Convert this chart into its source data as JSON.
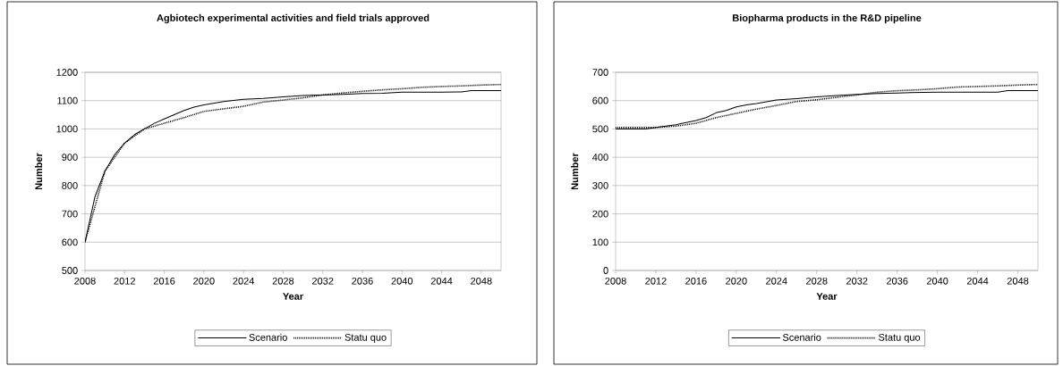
{
  "chart_data": [
    {
      "type": "line",
      "title": "Agbiotech experimental activities and field trials approved",
      "xlabel": "Year",
      "ylabel": "Number",
      "xlim": [
        2008,
        2050
      ],
      "xticks": [
        2008,
        2012,
        2016,
        2020,
        2024,
        2028,
        2032,
        2036,
        2040,
        2044,
        2048
      ],
      "ylim": [
        500,
        1200
      ],
      "yticks": [
        500,
        600,
        700,
        800,
        900,
        1000,
        1100,
        1200
      ],
      "grid": "y",
      "legend": "bottom",
      "marker": "none",
      "series": [
        {
          "name": "Scenario",
          "color": "#000000",
          "line_style": "solid",
          "x": [
            2008,
            2009,
            2010,
            2011,
            2012,
            2013,
            2014,
            2015,
            2016,
            2017,
            2018,
            2019,
            2020,
            2022,
            2024,
            2026,
            2028,
            2030,
            2032,
            2034,
            2036,
            2038,
            2040,
            2044,
            2046,
            2047,
            2050
          ],
          "values": [
            600,
            760,
            850,
            910,
            950,
            980,
            1000,
            1020,
            1035,
            1050,
            1065,
            1077,
            1085,
            1097,
            1105,
            1108,
            1113,
            1118,
            1120,
            1122,
            1125,
            1126,
            1130,
            1130,
            1131,
            1135,
            1135
          ]
        },
        {
          "name": "Statu quo",
          "color": "#000000",
          "line_style": "dotted",
          "x": [
            2008,
            2010,
            2012,
            2014,
            2016,
            2018,
            2020,
            2024,
            2026,
            2028,
            2030,
            2032,
            2034,
            2036,
            2038,
            2040,
            2042,
            2044,
            2046,
            2048,
            2050
          ],
          "values": [
            600,
            850,
            950,
            1000,
            1020,
            1040,
            1062,
            1080,
            1095,
            1102,
            1110,
            1120,
            1127,
            1133,
            1138,
            1142,
            1147,
            1150,
            1152,
            1155,
            1157
          ]
        }
      ]
    },
    {
      "type": "line",
      "title": "Biopharma products in the R&D pipeline",
      "xlabel": "Year",
      "ylabel": "Number",
      "xlim": [
        2008,
        2050
      ],
      "xticks": [
        2008,
        2012,
        2016,
        2020,
        2024,
        2028,
        2032,
        2036,
        2040,
        2044,
        2048
      ],
      "ylim": [
        0,
        700
      ],
      "yticks": [
        0,
        100,
        200,
        300,
        400,
        500,
        600,
        700
      ],
      "grid": "y",
      "legend": "bottom",
      "marker": "none",
      "series": [
        {
          "name": "Scenario",
          "color": "#000000",
          "line_style": "solid",
          "x": [
            2008,
            2011,
            2012,
            2014,
            2016,
            2017,
            2018,
            2019,
            2020,
            2021,
            2022,
            2024,
            2026,
            2028,
            2030,
            2032,
            2034,
            2036,
            2040,
            2046,
            2047,
            2050
          ],
          "values": [
            500,
            500,
            505,
            515,
            530,
            540,
            557,
            565,
            578,
            585,
            590,
            602,
            607,
            613,
            618,
            622,
            625,
            627,
            630,
            630,
            635,
            635
          ]
        },
        {
          "name": "Statu quo",
          "color": "#000000",
          "line_style": "dotted",
          "x": [
            2008,
            2012,
            2014,
            2016,
            2018,
            2020,
            2022,
            2024,
            2026,
            2028,
            2030,
            2032,
            2034,
            2036,
            2038,
            2040,
            2042,
            2044,
            2046,
            2048,
            2050
          ],
          "values": [
            505,
            505,
            510,
            520,
            540,
            555,
            570,
            583,
            597,
            603,
            612,
            620,
            630,
            635,
            638,
            642,
            648,
            650,
            652,
            655,
            657
          ]
        }
      ]
    }
  ]
}
